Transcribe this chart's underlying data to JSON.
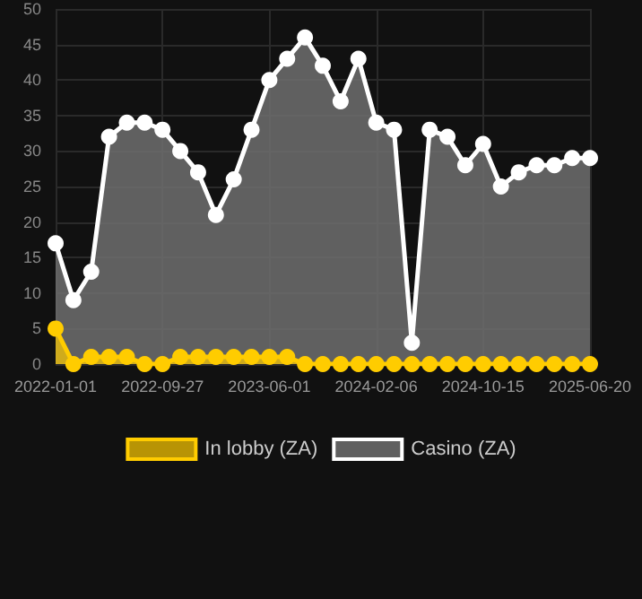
{
  "chart_data": {
    "type": "area",
    "categories": [
      "2022-01-01",
      null,
      null,
      null,
      null,
      null,
      "2022-09-27",
      null,
      null,
      null,
      null,
      null,
      "2023-06-01",
      null,
      null,
      null,
      null,
      null,
      "2024-02-06",
      null,
      null,
      null,
      null,
      null,
      "2024-10-15",
      null,
      null,
      null,
      null,
      null,
      "2025-06-20"
    ],
    "series": [
      {
        "name": "In lobby (ZA)",
        "color": "#ffcc00",
        "values": [
          5,
          0,
          1,
          1,
          1,
          0,
          0,
          1,
          1,
          1,
          1,
          1,
          1,
          1,
          0,
          0,
          0,
          0,
          0,
          0,
          0,
          0,
          0,
          0,
          0,
          0,
          0,
          0,
          0,
          0,
          0
        ]
      },
      {
        "name": "Casino (ZA)",
        "color": "#ffffff",
        "values": [
          17,
          9,
          13,
          32,
          34,
          34,
          33,
          30,
          27,
          21,
          26,
          33,
          40,
          43,
          46,
          42,
          37,
          43,
          34,
          33,
          3,
          33,
          32,
          28,
          31,
          25,
          27,
          28,
          28,
          29,
          29
        ]
      }
    ],
    "ylim": [
      0,
      50
    ],
    "yticks": [
      0,
      5,
      10,
      15,
      20,
      25,
      30,
      35,
      40,
      45,
      50
    ],
    "grid": true,
    "legend": "bottom",
    "marker": "circle"
  }
}
